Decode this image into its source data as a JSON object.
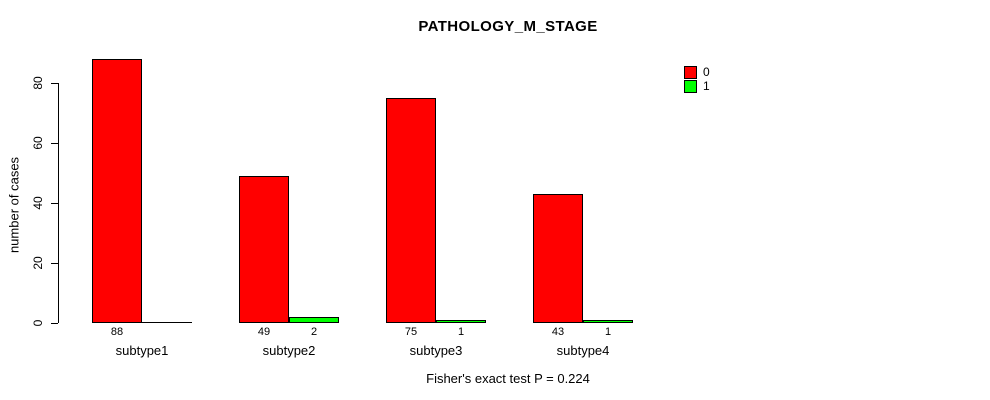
{
  "title": "PATHOLOGY_M_STAGE",
  "ylabel": "number of cases",
  "footer": "Fisher's exact test P = 0.224",
  "legend": [
    {
      "label": "0",
      "color": "#ff0000"
    },
    {
      "label": "1",
      "color": "#00ff00"
    }
  ],
  "chart_data": {
    "type": "bar",
    "title": "PATHOLOGY_M_STAGE",
    "xlabel": "",
    "ylabel": "number of cases",
    "categories": [
      "subtype1",
      "subtype2",
      "subtype3",
      "subtype4"
    ],
    "series": [
      {
        "name": "0",
        "color": "#ff0000",
        "values": [
          88,
          49,
          75,
          43
        ]
      },
      {
        "name": "1",
        "color": "#00ff00",
        "values": [
          0,
          2,
          1,
          1
        ]
      }
    ],
    "bar_value_labels": [
      [
        "88",
        ""
      ],
      [
        "49",
        "2"
      ],
      [
        "75",
        "1"
      ],
      [
        "43",
        "1"
      ]
    ],
    "yticks": [
      0,
      20,
      40,
      60,
      80
    ],
    "ylim": [
      0,
      88
    ],
    "grid": false,
    "legend_position": "top-right",
    "annotation": "Fisher's exact test P = 0.224"
  }
}
